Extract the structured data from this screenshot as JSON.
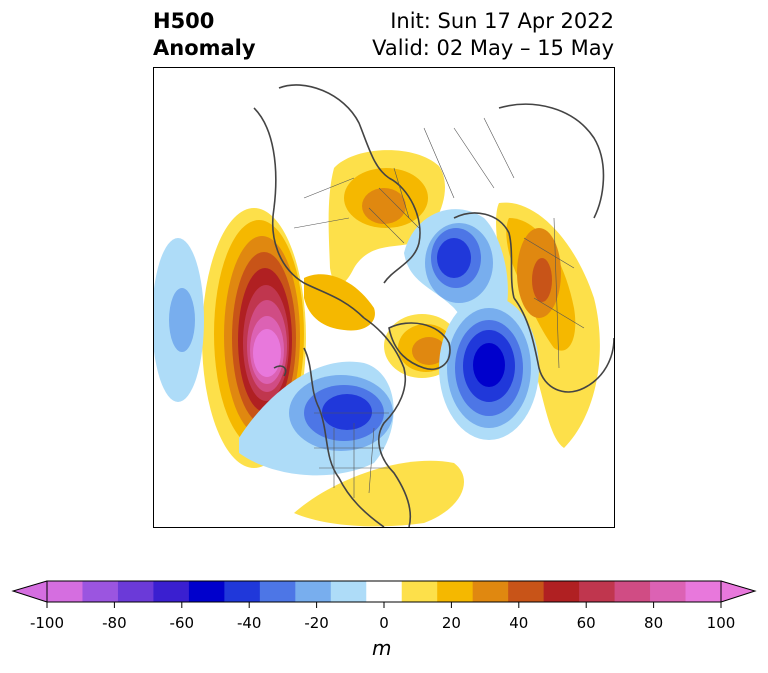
{
  "title": {
    "variable": "H500",
    "kind": "Anomaly",
    "init": "Init: Sun 17 Apr 2022",
    "valid": "Valid: 02 May – 15 May"
  },
  "colorbar": {
    "unit": "m",
    "ticks": [
      "-100",
      "-80",
      "-60",
      "-40",
      "-20",
      "0",
      "20",
      "40",
      "60",
      "80",
      "100"
    ],
    "levels": [
      -100,
      -90,
      -80,
      -70,
      -60,
      -50,
      -40,
      -30,
      -20,
      -10,
      10,
      20,
      30,
      40,
      50,
      60,
      70,
      80,
      90,
      100
    ],
    "colors": [
      "#d56ee0",
      "#9b55e0",
      "#6b3ad8",
      "#3a1fd0",
      "#0000cc",
      "#2038da",
      "#4d76e6",
      "#78aeee",
      "#aedcf8",
      "#ffffff",
      "#fde04a",
      "#f5b800",
      "#e08810",
      "#c85418",
      "#b02022",
      "#c0364e",
      "#d04c84",
      "#dc62b4",
      "#e878dc"
    ],
    "extend_min_color": "#d56ee0",
    "extend_max_color": "#e878dc"
  }
}
